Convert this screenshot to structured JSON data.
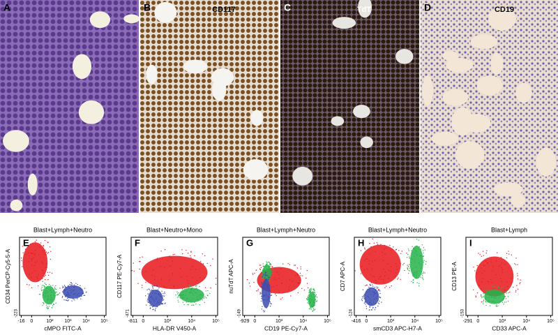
{
  "top_panels": [
    {
      "letter": "A"
    },
    {
      "letter": "B",
      "label": "CD117"
    },
    {
      "letter": "C",
      "label": "TdT"
    },
    {
      "letter": "D",
      "label": "CD19"
    }
  ],
  "plots": [
    {
      "letter": "E",
      "title": "Blast+Lymph+Neutro",
      "y_label": "CD34 PerCP-Cy5-5-A",
      "x_label": "cMPO FITC-A",
      "x_ticks": [
        "-16",
        "0",
        "10²",
        "10³",
        "10⁴",
        "10⁵"
      ],
      "y_ticks": [
        "-223"
      ]
    },
    {
      "letter": "F",
      "title": "Blast+Neutro+Mono",
      "y_label": "CD117 PE-Cy7-A",
      "x_label": "HLA-DR V450-A",
      "x_ticks": [
        "-811",
        "0",
        "10³",
        "10⁴",
        "10⁵"
      ],
      "y_ticks": [
        "-471"
      ]
    },
    {
      "letter": "G",
      "title": "Blast+Lymph+Neutro",
      "y_label": "nuTdT APC-A",
      "x_label": "CD19 PE-Cy7-A",
      "x_ticks": [
        "-929",
        "0",
        "10³",
        "10⁴",
        "10⁵"
      ],
      "y_ticks": [
        "-149"
      ]
    },
    {
      "letter": "H",
      "title": "Blast+Lymph+Neutro",
      "y_label": "CD7 APC-A",
      "x_label": "smCD3 APC-H7-A",
      "x_ticks": [
        "-416",
        "0",
        "10³",
        "10⁴",
        "10⁵"
      ],
      "y_ticks": [
        "-124"
      ]
    },
    {
      "letter": "I",
      "title": "Blast+Lymph",
      "y_label": "CD13 PE-A",
      "x_label": "CD33 APC-A",
      "x_ticks": [
        "-291",
        "0",
        "10³",
        "10⁴",
        "10⁵"
      ],
      "y_ticks": [
        "-153"
      ]
    }
  ]
}
